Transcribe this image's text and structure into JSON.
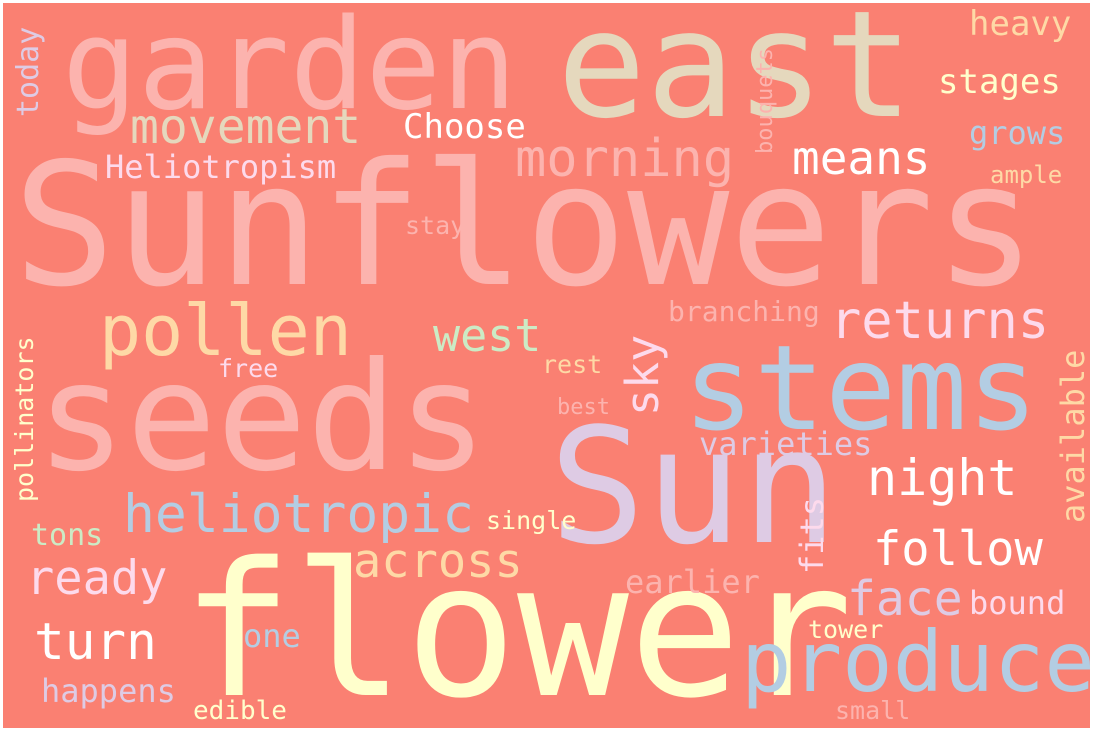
{
  "background_color": "#FA8072",
  "words": [
    {
      "text": "Sunflowers",
      "color": "#FCB3AE"
    },
    {
      "text": "flower",
      "color": "#FFFFCC"
    },
    {
      "text": "seeds",
      "color": "#FCB3AE"
    },
    {
      "text": "Sun",
      "color": "#DECBE4"
    },
    {
      "text": "east",
      "color": "#E5D8BD"
    },
    {
      "text": "garden",
      "color": "#FCB3AE"
    },
    {
      "text": "stems",
      "color": "#B3CDE3"
    },
    {
      "text": "produce",
      "color": "#B3CDE3"
    },
    {
      "text": "pollen",
      "color": "#FED9A6"
    },
    {
      "text": "heliotropic",
      "color": "#B3CDE3"
    },
    {
      "text": "movement",
      "color": "#E5D8BD"
    },
    {
      "text": "morning",
      "color": "#FCB3AE"
    },
    {
      "text": "returns",
      "color": "#FDDAEC"
    },
    {
      "text": "follow",
      "color": "#FFFFFF"
    },
    {
      "text": "night",
      "color": "#FFFFFF"
    },
    {
      "text": "means",
      "color": "#FFFFFF"
    },
    {
      "text": "across",
      "color": "#FED9A6"
    },
    {
      "text": "ready",
      "color": "#FDDAEC"
    },
    {
      "text": "turn",
      "color": "#FFFFFF"
    },
    {
      "text": "face",
      "color": "#DECBE4"
    },
    {
      "text": "west",
      "color": "#CCEBC5"
    },
    {
      "text": "sky",
      "color": "#FDDAEC"
    },
    {
      "text": "stages",
      "color": "#FFFFCC"
    },
    {
      "text": "heavy",
      "color": "#FED9A6"
    },
    {
      "text": "Choose",
      "color": "#FFFFFF"
    },
    {
      "text": "Heliotropism",
      "color": "#FDDAEC"
    },
    {
      "text": "grows",
      "color": "#B3CDE3"
    },
    {
      "text": "varieties",
      "color": "#DECBE4"
    },
    {
      "text": "bound",
      "color": "#FDDAEC"
    },
    {
      "text": "earlier",
      "color": "#FCB3AE"
    },
    {
      "text": "happens",
      "color": "#DECBE4"
    },
    {
      "text": "available",
      "color": "#FED9A6"
    },
    {
      "text": "fits",
      "color": "#FDDAEC"
    },
    {
      "text": "branching",
      "color": "#FCB3AE"
    },
    {
      "text": "one",
      "color": "#B3CDE3"
    },
    {
      "text": "tons",
      "color": "#CCEBC5"
    },
    {
      "text": "pollinators",
      "color": "#FFFFCC"
    },
    {
      "text": "today",
      "color": "#DECBE4"
    },
    {
      "text": "bouquets",
      "color": "#FCB3AE"
    },
    {
      "text": "stay",
      "color": "#FCB3AE"
    },
    {
      "text": "ample",
      "color": "#FED9A6"
    },
    {
      "text": "edible",
      "color": "#FFFFCC"
    },
    {
      "text": "single",
      "color": "#FFFFCC"
    },
    {
      "text": "tower",
      "color": "#FFFFCC"
    },
    {
      "text": "small",
      "color": "#FCB3AE"
    },
    {
      "text": "rest",
      "color": "#FED9A6"
    },
    {
      "text": "free",
      "color": "#FDDAEC"
    },
    {
      "text": "best",
      "color": "#FCB3AE"
    }
  ]
}
